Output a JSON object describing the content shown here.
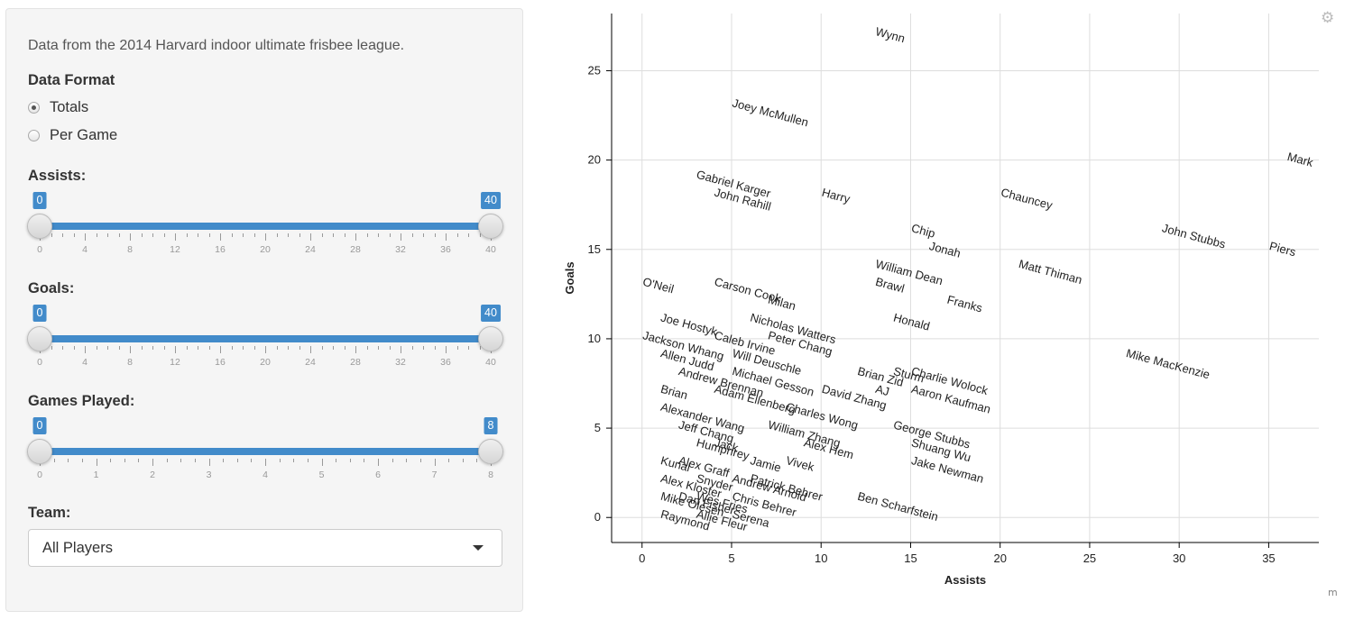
{
  "sidebar": {
    "description": "Data from the 2014 Harvard indoor ultimate frisbee league.",
    "format_label": "Data Format",
    "format_options": [
      "Totals",
      "Per Game"
    ],
    "format_selected": "Totals",
    "sliders": [
      {
        "label": "Assists:",
        "min": 0,
        "max": 40,
        "low": 0,
        "high": 40,
        "ticks": [
          "0",
          "4",
          "8",
          "12",
          "16",
          "20",
          "24",
          "28",
          "32",
          "36",
          "40"
        ],
        "minor": 4
      },
      {
        "label": "Goals:",
        "min": 0,
        "max": 40,
        "low": 0,
        "high": 40,
        "ticks": [
          "0",
          "4",
          "8",
          "12",
          "16",
          "20",
          "24",
          "28",
          "32",
          "36",
          "40"
        ],
        "minor": 4
      },
      {
        "label": "Games Played:",
        "min": 0,
        "max": 8,
        "low": 0,
        "high": 8,
        "ticks": [
          "0",
          "1",
          "2",
          "3",
          "4",
          "5",
          "6",
          "7",
          "8"
        ],
        "minor": 4
      }
    ],
    "team_label": "Team:",
    "team_selected": "All Players"
  },
  "colors": {
    "accent": "#428bca",
    "grid": "#dddddd"
  },
  "icons": {
    "settings": "gear-icon",
    "resize": "resize-handle-icon"
  },
  "chart_data": {
    "type": "scatter",
    "xlabel": "Assists",
    "ylabel": "Goals",
    "xlim": [
      -1.7,
      37.8
    ],
    "ylim": [
      -1.4,
      28.2
    ],
    "xticks": [
      0,
      5,
      10,
      15,
      20,
      25,
      30,
      35
    ],
    "yticks": [
      0,
      5,
      10,
      15,
      20,
      25
    ],
    "grid": true,
    "points": [
      {
        "label": "Wynn",
        "x": 13,
        "y": 27
      },
      {
        "label": "Joey McMullen",
        "x": 5,
        "y": 23
      },
      {
        "label": "Mark",
        "x": 36,
        "y": 20
      },
      {
        "label": "Gabriel Karger",
        "x": 3,
        "y": 19
      },
      {
        "label": "John Rahill",
        "x": 4,
        "y": 18
      },
      {
        "label": "Harry",
        "x": 10,
        "y": 18
      },
      {
        "label": "Chauncey",
        "x": 20,
        "y": 18
      },
      {
        "label": "Chip",
        "x": 15,
        "y": 16
      },
      {
        "label": "Jonah",
        "x": 16,
        "y": 15
      },
      {
        "label": "John Stubbs",
        "x": 29,
        "y": 16
      },
      {
        "label": "Piers",
        "x": 35,
        "y": 15
      },
      {
        "label": "William Dean",
        "x": 13,
        "y": 14
      },
      {
        "label": "Matt Thiman",
        "x": 21,
        "y": 14
      },
      {
        "label": "Brawl",
        "x": 13,
        "y": 13
      },
      {
        "label": "O'Neil",
        "x": 0,
        "y": 13
      },
      {
        "label": "Carson Cook",
        "x": 4,
        "y": 13
      },
      {
        "label": "Milan",
        "x": 7,
        "y": 12
      },
      {
        "label": "Franks",
        "x": 17,
        "y": 12
      },
      {
        "label": "Nicholas Watters",
        "x": 6,
        "y": 11
      },
      {
        "label": "Honald",
        "x": 14,
        "y": 11
      },
      {
        "label": "Joe Hostyk",
        "x": 1,
        "y": 11
      },
      {
        "label": "Caleb Irvine",
        "x": 4,
        "y": 10
      },
      {
        "label": "Peter Chang",
        "x": 7,
        "y": 10
      },
      {
        "label": "Jackson Whang",
        "x": 0,
        "y": 10
      },
      {
        "label": "Will Deuschle",
        "x": 5,
        "y": 9
      },
      {
        "label": "Mike MacKenzie",
        "x": 27,
        "y": 9
      },
      {
        "label": "Allen Judd",
        "x": 1,
        "y": 9
      },
      {
        "label": "Brian Zid",
        "x": 12,
        "y": 8
      },
      {
        "label": "Sturm",
        "x": 14,
        "y": 8
      },
      {
        "label": "Charlie Wolock",
        "x": 15,
        "y": 8
      },
      {
        "label": "Michael Gesson",
        "x": 5,
        "y": 8
      },
      {
        "label": "Andrew Brennan",
        "x": 2,
        "y": 8
      },
      {
        "label": "AJ",
        "x": 13,
        "y": 7
      },
      {
        "label": "Aaron Kaufman",
        "x": 15,
        "y": 7
      },
      {
        "label": "David Zhang",
        "x": 10,
        "y": 7
      },
      {
        "label": "Adam Ellenberg",
        "x": 4,
        "y": 7
      },
      {
        "label": "Brian",
        "x": 1,
        "y": 7
      },
      {
        "label": "Charles Wong",
        "x": 8,
        "y": 6
      },
      {
        "label": "Alexander Wang",
        "x": 1,
        "y": 6
      },
      {
        "label": "George Stubbs",
        "x": 14,
        "y": 5
      },
      {
        "label": "William Zhang",
        "x": 7,
        "y": 5
      },
      {
        "label": "Jeff Chang",
        "x": 2,
        "y": 5
      },
      {
        "label": "Shuang Wu",
        "x": 15,
        "y": 4
      },
      {
        "label": "Alex Hem",
        "x": 9,
        "y": 4
      },
      {
        "label": "Humphrey",
        "x": 3,
        "y": 4
      },
      {
        "label": "Jack",
        "x": 4,
        "y": 4
      },
      {
        "label": "Vivek",
        "x": 8,
        "y": 3
      },
      {
        "label": "Jamie",
        "x": 6,
        "y": 3
      },
      {
        "label": "Alex Graff",
        "x": 2,
        "y": 3
      },
      {
        "label": "Jake Newman",
        "x": 15,
        "y": 3
      },
      {
        "label": "Kunal",
        "x": 1,
        "y": 3
      },
      {
        "label": "Patrick Behrer",
        "x": 6,
        "y": 2
      },
      {
        "label": "Snyder",
        "x": 3,
        "y": 2
      },
      {
        "label": "Alex Kloster",
        "x": 1,
        "y": 2
      },
      {
        "label": "Chris Behrer",
        "x": 5,
        "y": 1
      },
      {
        "label": "Ben Scharfstein",
        "x": 12,
        "y": 1
      },
      {
        "label": "Andrew Arnold",
        "x": 5,
        "y": 2
      },
      {
        "label": "Wes Fries",
        "x": 3,
        "y": 1
      },
      {
        "label": "Dan Fisher",
        "x": 2,
        "y": 1
      },
      {
        "label": "Mike Olesen",
        "x": 1,
        "y": 1
      },
      {
        "label": "Serena",
        "x": 5,
        "y": 0
      },
      {
        "label": "Allie Fleur",
        "x": 3,
        "y": 0
      },
      {
        "label": "Raymond",
        "x": 1,
        "y": 0
      }
    ]
  }
}
